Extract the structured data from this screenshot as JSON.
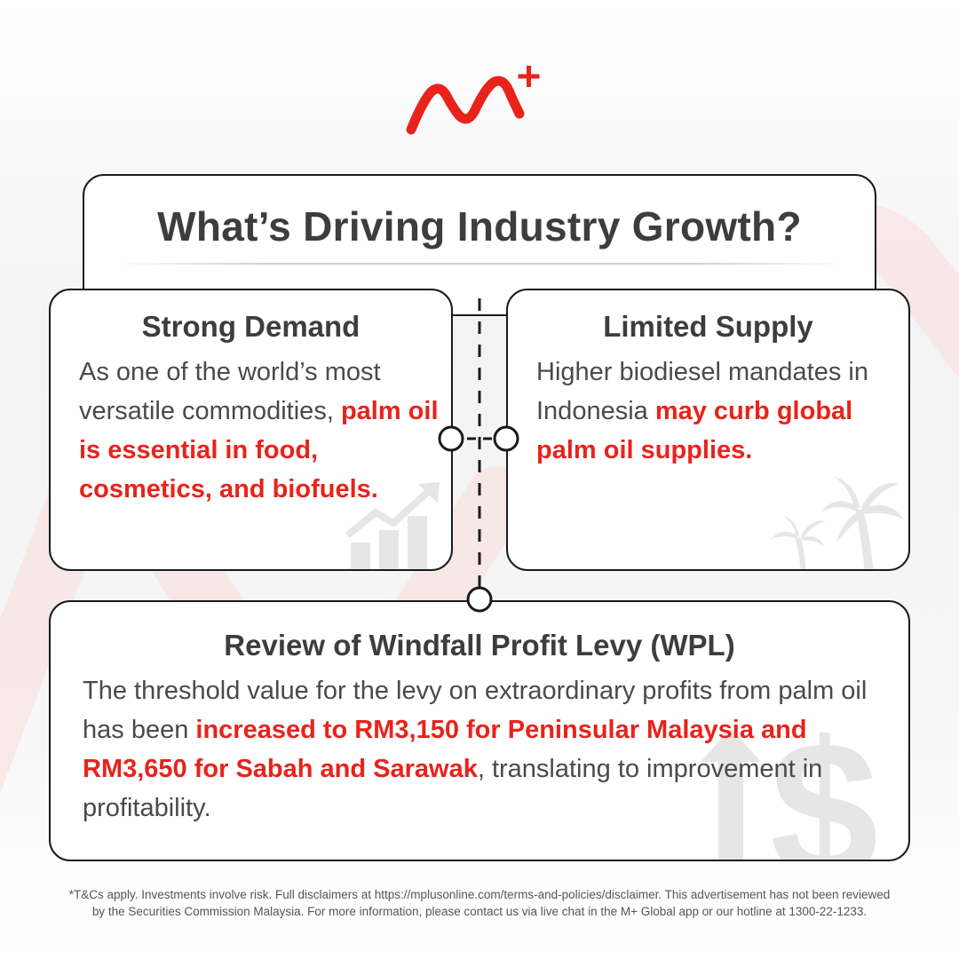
{
  "colors": {
    "accent": "#e8231b",
    "text": "#444444",
    "border": "#1a1a1a"
  },
  "logo": {
    "icon": "m-plus-logo-icon"
  },
  "title": "What’s Driving Industry Growth?",
  "cards": {
    "demand": {
      "heading": "Strong Demand",
      "body_plain": "As one of the world’s most versatile commodities, ",
      "body_highlight": "palm oil is essential in food, cosmetics, and biofuels.",
      "icon": "growth-chart-icon"
    },
    "supply": {
      "heading": "Limited Supply",
      "body_plain": "Higher biodiesel mandates in Indonesia ",
      "body_highlight": "may curb global palm oil supplies.",
      "icon": "palm-tree-icon"
    },
    "wpl": {
      "heading": "Review of Windfall Profit Levy (WPL)",
      "body_plain_1": "The threshold value for the levy on extraordinary profits from palm oil has been ",
      "body_highlight": "increased to RM3,150 for Peninsular Malaysia and RM3,650 for Sabah and Sarawak",
      "body_plain_2": ", translating to improvement in profitability.",
      "icon": "dollar-up-arrow-icon"
    }
  },
  "disclaimer": "*T&Cs apply. Investments involve risk. Full disclaimers at https://mplusonline.com/terms-and-policies/disclaimer. This advertisement has not been reviewed by the Securities Commission Malaysia.  For more information, please contact us via live chat in the M+ Global app or our hotline at 1300-22-1233."
}
